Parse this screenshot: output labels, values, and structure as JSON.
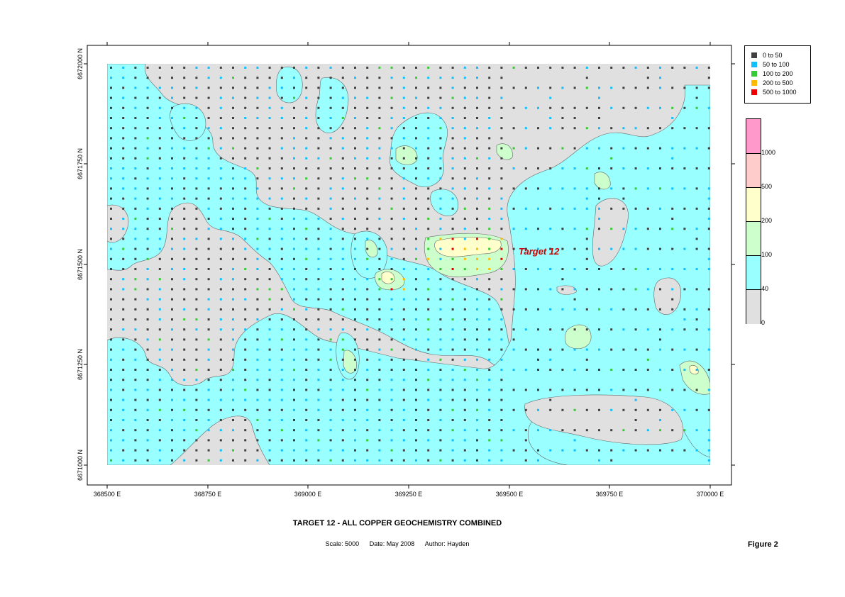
{
  "map": {
    "title": "TARGET 12  -  ALL COPPER GEOCHEMISTRY COMBINED",
    "scale": "Scale: 5000",
    "date": "Date: May 2008",
    "author": "Author: Hayden",
    "figure_label": "Figure 2",
    "target_label": "Target 12",
    "y_ticks": [
      "6672000 N",
      "6671750 N",
      "6671500 N",
      "6671250 N",
      "6671000 N"
    ],
    "x_ticks": [
      "368500 E",
      "368750 E",
      "369000 E",
      "369250 E",
      "369500 E",
      "369750 E",
      "370000 E"
    ]
  },
  "legend": {
    "items": [
      {
        "label": "0  to  50",
        "color": "#404040"
      },
      {
        "label": "50  to  100",
        "color": "#10bfff"
      },
      {
        "label": "100  to  200",
        "color": "#33cc33"
      },
      {
        "label": "200  to  500",
        "color": "#ffbb00"
      },
      {
        "label": "500  to  1000",
        "color": "#ee0000"
      }
    ]
  },
  "colorbar": {
    "levels": [
      "1000",
      "500",
      "200",
      "100",
      "40",
      "0"
    ],
    "colors": [
      "#ff99cc",
      "#ffcccc",
      "#ffffcc",
      "#ccffcc",
      "#99ffff",
      "#e0e0e0"
    ]
  }
}
